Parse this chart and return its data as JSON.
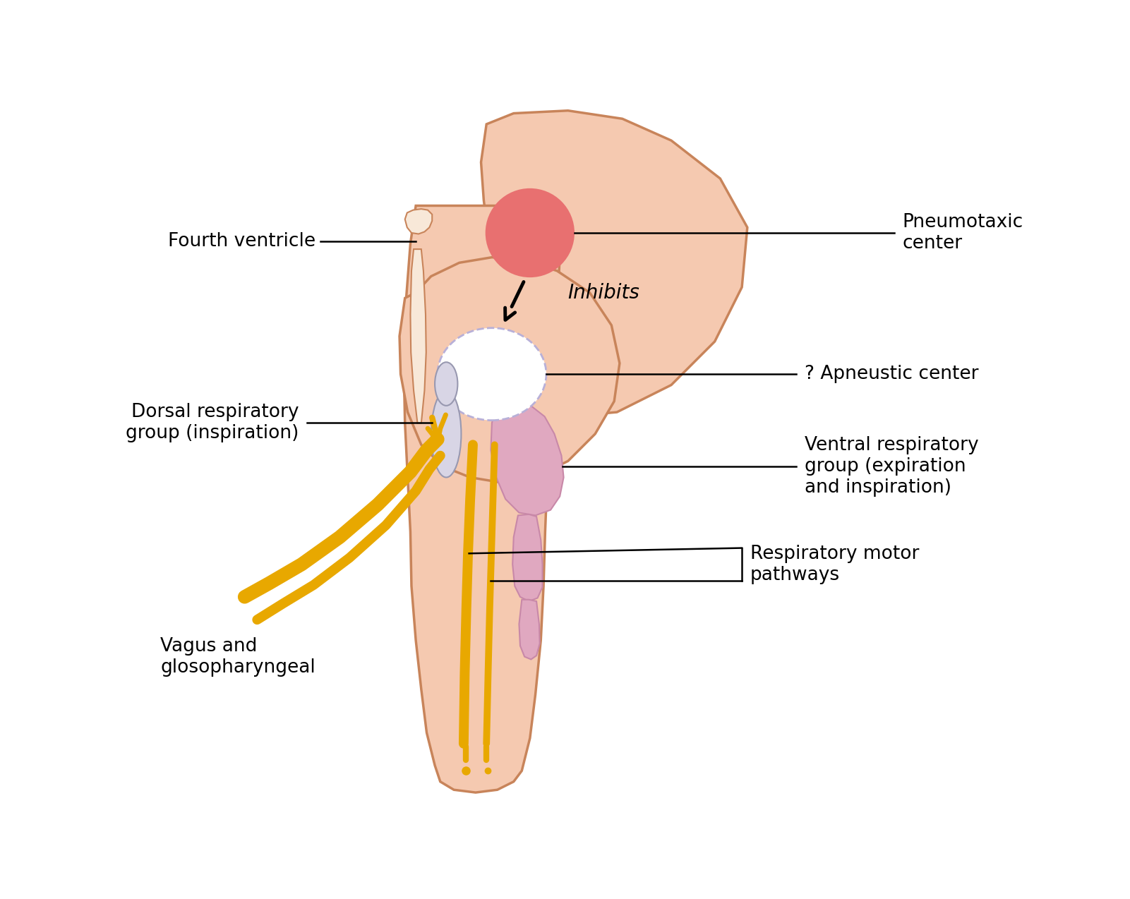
{
  "bg_color": "#ffffff",
  "brainstem_color": "#f5c9b0",
  "brainstem_outline": "#c8845a",
  "cerebellum_color": "#f5c9b0",
  "pneumotaxic_color": "#e87070",
  "apneustic_fill": "#f0eef8",
  "apneustic_outline": "#b8b0d8",
  "ventral_color": "#e0a8c0",
  "ventral_outline": "#c888a8",
  "dorsal_fill": "#d8d5e5",
  "dorsal_outline": "#9898b0",
  "nerve_color": "#e8a800",
  "nerve_outline": "#c88800",
  "inner_tube_color": "#f8e8d8",
  "inner_tube_outline": "#c8845a",
  "ann_color": "#000000",
  "labels": {
    "pneumotaxic": "Pneumotaxic\ncenter",
    "apneustic": "? Apneustic center",
    "dorsal": "Dorsal respiratory\ngroup (inspiration)",
    "ventral": "Ventral respiratory\ngroup (expiration\nand inspiration)",
    "fourth_ventricle": "Fourth ventricle",
    "vagus": "Vagus and\nglosopharyngeal",
    "inhibits": "Inhibits",
    "motor": "Respiratory motor\npathways"
  },
  "figsize": [
    16.01,
    12.74
  ],
  "dpi": 100
}
